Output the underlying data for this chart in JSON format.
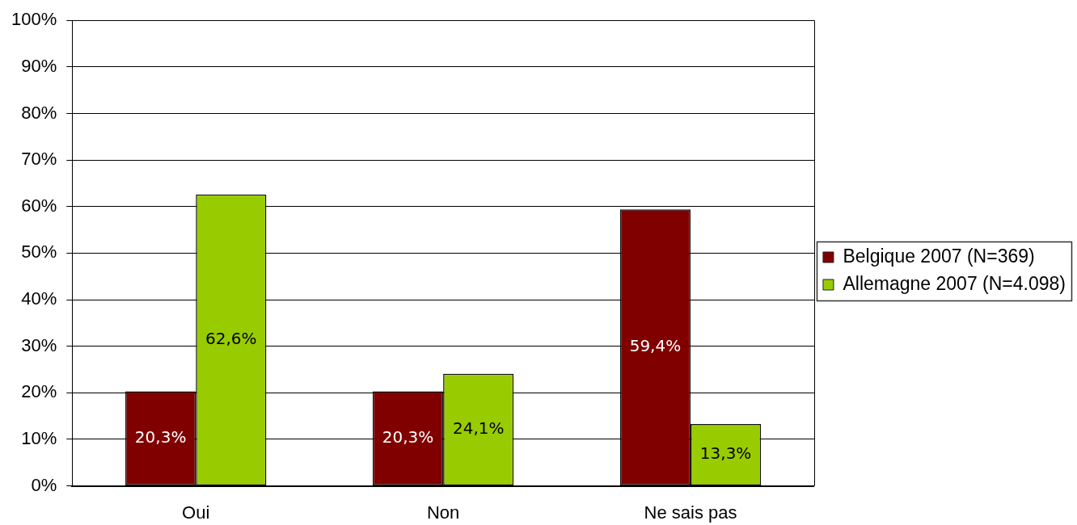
{
  "chart_data": {
    "type": "bar",
    "categories": [
      "Oui",
      "Non",
      "Ne sais pas"
    ],
    "series": [
      {
        "name": "Belgique 2007 (N=369)",
        "color": "#800000",
        "values": [
          20.3,
          20.3,
          59.4
        ],
        "value_labels": [
          "20,3%",
          "20,3%",
          "59,4%"
        ]
      },
      {
        "name": "Allemagne 2007 (N=4.098)",
        "color": "#99cc00",
        "values": [
          62.6,
          24.1,
          13.3
        ],
        "value_labels": [
          "62,6%",
          "24,1%",
          "13,3%"
        ]
      }
    ],
    "ylim": [
      0,
      100
    ],
    "yticks": [
      {
        "value": 0,
        "label": "0%"
      },
      {
        "value": 10,
        "label": "10%"
      },
      {
        "value": 20,
        "label": "20%"
      },
      {
        "value": 30,
        "label": "30%"
      },
      {
        "value": 40,
        "label": "40%"
      },
      {
        "value": 50,
        "label": "50%"
      },
      {
        "value": 60,
        "label": "60%"
      },
      {
        "value": 70,
        "label": "70%"
      },
      {
        "value": 80,
        "label": "80%"
      },
      {
        "value": 90,
        "label": "90%"
      },
      {
        "value": 100,
        "label": "100%"
      }
    ],
    "grid": "y",
    "legend": "right"
  }
}
